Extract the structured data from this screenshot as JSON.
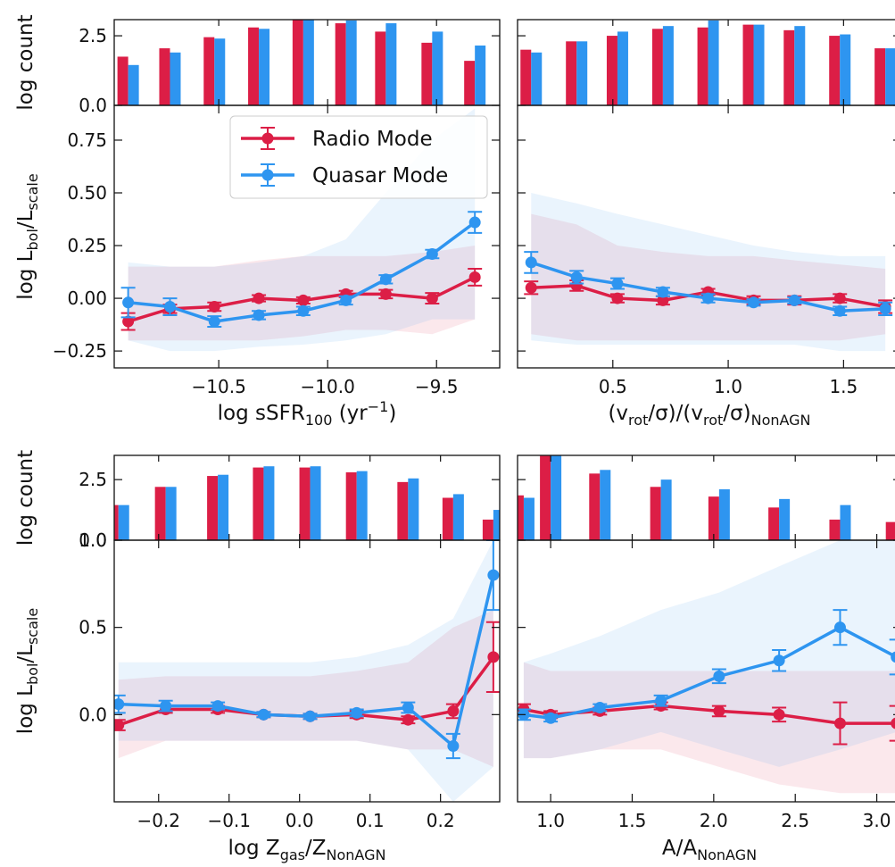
{
  "chart_data": [
    {
      "type": "bar",
      "ylabel": "log count",
      "ylim": [
        0,
        3.08
      ],
      "yticks": [
        {
          "value": 0,
          "label": "0.0"
        },
        2.5
      ],
      "series": [
        {
          "name": "Radio Mode",
          "color": "#dc1e46",
          "values": [
            1.75,
            2.05,
            2.45,
            2.8,
            3.1,
            2.95,
            2.65,
            2.25,
            1.6
          ]
        },
        {
          "name": "Quasar Mode",
          "color": "#2e95f0",
          "values": [
            1.45,
            1.9,
            2.4,
            2.75,
            3.1,
            3.05,
            2.95,
            2.65,
            2.15
          ]
        }
      ]
    },
    {
      "type": "line",
      "xlabel": [
        {
          "text": "log sSFR"
        },
        {
          "text": "100",
          "shift": "sub"
        },
        {
          "text": " (yr"
        },
        {
          "text": "−1",
          "shift": "sup"
        },
        {
          "text": ")"
        }
      ],
      "ylabel": [
        {
          "text": "log L"
        },
        {
          "text": "bol",
          "shift": "sub"
        },
        {
          "text": "/L"
        },
        {
          "text": "scale",
          "shift": "sub"
        }
      ],
      "xlim": [
        -10.98,
        -9.21
      ],
      "xticks": [
        {
          "value": -10.5,
          "label": "−10.5"
        },
        {
          "value": -10.0,
          "label": "−10.0"
        },
        {
          "value": -9.5,
          "label": "−9.5"
        }
      ],
      "ylim": [
        -0.33,
        0.915
      ],
      "yticks": [
        {
          "value": -0.25,
          "label": "−0.25"
        },
        {
          "value": 0,
          "label": "0.00"
        },
        0.25,
        {
          "value": 0.5,
          "label": "0.50"
        },
        0.75
      ],
      "x": [
        -10.916,
        -10.724,
        -10.52,
        -10.316,
        -10.112,
        -9.916,
        -9.733,
        -9.52,
        -9.324
      ],
      "series": [
        {
          "name": "Radio Mode",
          "color": "#dc1e46",
          "values": [
            -0.11,
            -0.05,
            -0.04,
            0.0,
            -0.01,
            0.02,
            0.02,
            0.0,
            0.1
          ],
          "errors": [
            0.04,
            0.02,
            0.02,
            0.015,
            0.015,
            0.015,
            0.02,
            0.025,
            0.04
          ],
          "band_lower": [
            -0.2,
            -0.2,
            -0.2,
            -0.2,
            -0.18,
            -0.15,
            -0.15,
            -0.17,
            -0.1
          ],
          "band_upper": [
            0.15,
            0.15,
            0.15,
            0.18,
            0.2,
            0.2,
            0.2,
            0.22,
            0.25
          ]
        },
        {
          "name": "Quasar Mode",
          "color": "#2e95f0",
          "values": [
            -0.02,
            -0.04,
            -0.11,
            -0.08,
            -0.06,
            -0.01,
            0.09,
            0.21,
            0.36
          ],
          "errors": [
            0.07,
            0.04,
            0.025,
            0.02,
            0.02,
            0.02,
            0.02,
            0.02,
            0.05
          ],
          "band_lower": [
            -0.2,
            -0.25,
            -0.25,
            -0.23,
            -0.22,
            -0.2,
            -0.17,
            -0.1,
            -0.1
          ],
          "band_upper": [
            0.17,
            0.15,
            0.15,
            0.17,
            0.2,
            0.28,
            0.5,
            0.75,
            0.9
          ]
        }
      ],
      "legend": "upper center"
    },
    {
      "type": "bar",
      "series": [
        {
          "name": "Radio Mode",
          "color": "#dc1e46",
          "values": [
            2.0,
            2.3,
            2.5,
            2.75,
            2.8,
            2.9,
            2.7,
            2.5,
            2.05
          ]
        },
        {
          "name": "Quasar Mode",
          "color": "#2e95f0",
          "values": [
            1.9,
            2.3,
            2.65,
            2.85,
            3.05,
            2.9,
            2.85,
            2.55,
            2.05
          ]
        }
      ]
    },
    {
      "type": "line",
      "xlabel": [
        {
          "text": "(v"
        },
        {
          "text": "rot",
          "shift": "sub"
        },
        {
          "text": "/σ)/(v"
        },
        {
          "text": "rot",
          "shift": "sub"
        },
        {
          "text": "/σ)"
        },
        {
          "text": "NonAGN",
          "shift": "sub"
        }
      ],
      "xlim": [
        0.087,
        1.75
      ],
      "xticks": [
        0.5,
        {
          "value": 1.0,
          "label": "1.0"
        },
        1.5
      ],
      "x": [
        0.146,
        0.343,
        0.52,
        0.717,
        0.913,
        1.11,
        1.287,
        1.484,
        1.681
      ],
      "series": [
        {
          "name": "Radio Mode",
          "color": "#dc1e46",
          "values": [
            0.05,
            0.06,
            0.0,
            -0.01,
            0.03,
            -0.01,
            -0.01,
            0.0,
            -0.04
          ],
          "errors": [
            0.03,
            0.025,
            0.02,
            0.02,
            0.015,
            0.02,
            0.02,
            0.02,
            0.03
          ],
          "band_lower": [
            -0.17,
            -0.2,
            -0.2,
            -0.2,
            -0.2,
            -0.2,
            -0.2,
            -0.2,
            -0.17
          ],
          "band_upper": [
            0.4,
            0.35,
            0.25,
            0.22,
            0.2,
            0.2,
            0.18,
            0.16,
            0.14
          ]
        },
        {
          "name": "Quasar Mode",
          "color": "#2e95f0",
          "values": [
            0.17,
            0.1,
            0.07,
            0.03,
            0.0,
            -0.02,
            -0.01,
            -0.06,
            -0.05
          ],
          "errors": [
            0.05,
            0.03,
            0.025,
            0.02,
            0.02,
            0.015,
            0.015,
            0.02,
            0.03
          ],
          "band_lower": [
            -0.2,
            -0.22,
            -0.22,
            -0.22,
            -0.22,
            -0.22,
            -0.22,
            -0.25,
            -0.25
          ],
          "band_upper": [
            0.5,
            0.45,
            0.4,
            0.35,
            0.3,
            0.25,
            0.22,
            0.2,
            0.2
          ]
        }
      ]
    },
    {
      "type": "bar",
      "ylabel": "log count",
      "ylim": [
        0,
        3.5
      ],
      "yticks": [
        {
          "value": 0,
          "label": "0.0"
        },
        2.5
      ],
      "series": [
        {
          "name": "Radio Mode",
          "color": "#dc1e46",
          "values": [
            1.45,
            2.2,
            2.65,
            3.0,
            3.0,
            2.8,
            2.4,
            1.75,
            0.85
          ]
        },
        {
          "name": "Quasar Mode",
          "color": "#2e95f0",
          "values": [
            1.45,
            2.2,
            2.7,
            3.05,
            3.05,
            2.85,
            2.55,
            1.9,
            1.25
          ]
        }
      ]
    },
    {
      "type": "line",
      "xlabel": [
        {
          "text": "log Z"
        },
        {
          "text": "gas",
          "shift": "sub"
        },
        {
          "text": "/Z"
        },
        {
          "text": "NonAGN",
          "shift": "sub"
        }
      ],
      "ylabel": [
        {
          "text": "log L"
        },
        {
          "text": "bol",
          "shift": "sub"
        },
        {
          "text": "/L"
        },
        {
          "text": "scale",
          "shift": "sub"
        }
      ],
      "xlim": [
        -0.263,
        0.284
      ],
      "xticks": [
        {
          "value": -0.2,
          "label": "−0.2"
        },
        {
          "value": -0.1,
          "label": "−0.1"
        },
        {
          "value": 0,
          "label": "0.0"
        },
        0.1,
        0.2
      ],
      "ylim": [
        -0.5,
        1.0
      ],
      "yticks": [
        {
          "value": 0,
          "label": "0.0"
        },
        0.5,
        {
          "value": 1.0,
          "label": "1.0"
        }
      ],
      "x": [
        -0.257,
        -0.19,
        -0.116,
        -0.051,
        0.015,
        0.081,
        0.154,
        0.218,
        0.275
      ],
      "series": [
        {
          "name": "Radio Mode",
          "color": "#dc1e46",
          "values": [
            -0.06,
            0.03,
            0.03,
            0.0,
            -0.01,
            0.0,
            -0.03,
            0.02,
            0.33
          ],
          "errors": [
            0.03,
            0.02,
            0.02,
            0.015,
            0.015,
            0.02,
            0.02,
            0.04,
            0.2
          ],
          "band_lower": [
            -0.25,
            -0.15,
            -0.15,
            -0.15,
            -0.15,
            -0.15,
            -0.2,
            -0.2,
            -0.3
          ],
          "band_upper": [
            0.2,
            0.22,
            0.22,
            0.22,
            0.22,
            0.25,
            0.3,
            0.5,
            0.6
          ]
        },
        {
          "name": "Quasar Mode",
          "color": "#2e95f0",
          "values": [
            0.06,
            0.05,
            0.05,
            0.0,
            -0.01,
            0.01,
            0.04,
            -0.18,
            0.8
          ],
          "errors": [
            0.05,
            0.03,
            0.02,
            0.015,
            0.015,
            0.02,
            0.03,
            0.07,
            0.2
          ],
          "band_lower": [
            -0.15,
            -0.15,
            -0.15,
            -0.15,
            -0.15,
            -0.15,
            -0.2,
            -0.5,
            -0.3
          ],
          "band_upper": [
            0.3,
            0.3,
            0.3,
            0.3,
            0.3,
            0.33,
            0.4,
            0.55,
            1.0
          ]
        }
      ]
    },
    {
      "type": "bar",
      "series": [
        {
          "name": "Radio Mode",
          "color": "#dc1e46",
          "values": [
            1.85,
            3.6,
            2.75,
            2.2,
            1.8,
            1.35,
            0.85,
            0.75
          ]
        },
        {
          "name": "Quasar Mode",
          "color": "#2e95f0",
          "values": [
            1.75,
            3.6,
            2.9,
            2.5,
            2.1,
            1.7,
            1.45,
            1.1
          ]
        }
      ]
    },
    {
      "type": "line",
      "xlabel": [
        {
          "text": "A/A"
        },
        {
          "text": "NonAGN",
          "shift": "sub"
        }
      ],
      "xlim": [
        0.797,
        3.15
      ],
      "xticks": [
        {
          "value": 1.0,
          "label": "1.0"
        },
        1.5,
        {
          "value": 2.0,
          "label": "2.0"
        },
        2.5,
        {
          "value": 3.0,
          "label": "3.0"
        }
      ],
      "x": [
        0.835,
        1.0,
        1.302,
        1.676,
        2.033,
        2.401,
        2.775,
        3.121
      ],
      "series": [
        {
          "name": "Radio Mode",
          "color": "#dc1e46",
          "values": [
            0.03,
            0.0,
            0.02,
            0.05,
            0.02,
            0.0,
            -0.05,
            -0.05
          ],
          "errors": [
            0.03,
            0.02,
            0.02,
            0.02,
            0.03,
            0.04,
            0.12,
            0.1
          ],
          "band_lower": [
            -0.25,
            -0.25,
            -0.2,
            -0.2,
            -0.3,
            -0.4,
            -0.45,
            -0.45
          ],
          "band_upper": [
            0.3,
            0.25,
            0.25,
            0.25,
            0.25,
            0.25,
            0.25,
            0.25
          ]
        },
        {
          "name": "Quasar Mode",
          "color": "#2e95f0",
          "values": [
            0.0,
            -0.02,
            0.04,
            0.08,
            0.22,
            0.31,
            0.5,
            0.33
          ],
          "errors": [
            0.03,
            0.02,
            0.02,
            0.03,
            0.04,
            0.06,
            0.1,
            0.1
          ],
          "band_lower": [
            -0.25,
            -0.25,
            -0.2,
            -0.1,
            -0.2,
            -0.3,
            -0.2,
            -0.1
          ],
          "band_upper": [
            0.3,
            0.35,
            0.45,
            0.6,
            0.7,
            0.85,
            1.0,
            1.0
          ]
        }
      ]
    }
  ]
}
